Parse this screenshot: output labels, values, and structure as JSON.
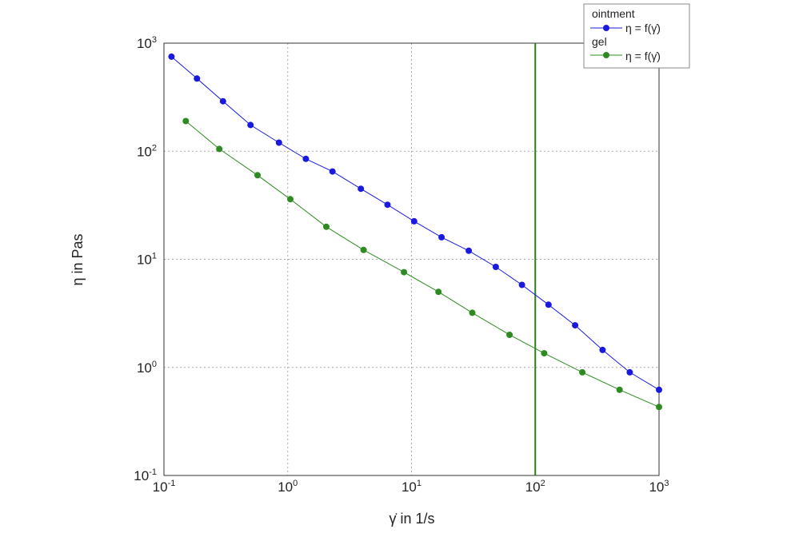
{
  "chart_data": {
    "type": "line",
    "xlabel": "γ̇ in 1/s",
    "ylabel": "η in Pas",
    "x_scale": "log",
    "y_scale": "log",
    "xlim": [
      0.1,
      1000
    ],
    "ylim": [
      0.1,
      1000
    ],
    "x_ticks": [
      {
        "base": "10",
        "exp": "-1"
      },
      {
        "base": "10",
        "exp": "0"
      },
      {
        "base": "10",
        "exp": "1"
      },
      {
        "base": "10",
        "exp": "2"
      },
      {
        "base": "10",
        "exp": "3"
      }
    ],
    "y_ticks": [
      {
        "base": "10",
        "exp": "-1"
      },
      {
        "base": "10",
        "exp": "0"
      },
      {
        "base": "10",
        "exp": "1"
      },
      {
        "base": "10",
        "exp": "2"
      },
      {
        "base": "10",
        "exp": "3"
      }
    ],
    "grid": true,
    "legend_position": "top-right",
    "reference_line": {
      "x": 100,
      "color": "#2e7d1f"
    },
    "series": [
      {
        "name": "ointment",
        "legend_label": "η = f(γ̇)",
        "color": "#1a1adf",
        "x": [
          0.115,
          0.185,
          0.3,
          0.5,
          0.85,
          1.4,
          2.3,
          3.9,
          6.4,
          10.5,
          17.5,
          29,
          48,
          78,
          128,
          210,
          350,
          580,
          1000
        ],
        "y": [
          750,
          470,
          290,
          175,
          120,
          85,
          65,
          45,
          32,
          22.5,
          16,
          12,
          8.5,
          5.8,
          3.8,
          2.45,
          1.45,
          0.9,
          0.62
        ]
      },
      {
        "name": "gel",
        "legend_label": "η = f(γ̇)",
        "color": "#2e8b22",
        "x": [
          0.15,
          0.28,
          0.57,
          1.05,
          2.05,
          4.1,
          8.7,
          16.5,
          31,
          62,
          118,
          240,
          480,
          1000
        ],
        "y": [
          190,
          105,
          60,
          36,
          20,
          12.2,
          7.6,
          5.0,
          3.2,
          2.0,
          1.35,
          0.9,
          0.62,
          0.43
        ]
      }
    ]
  }
}
